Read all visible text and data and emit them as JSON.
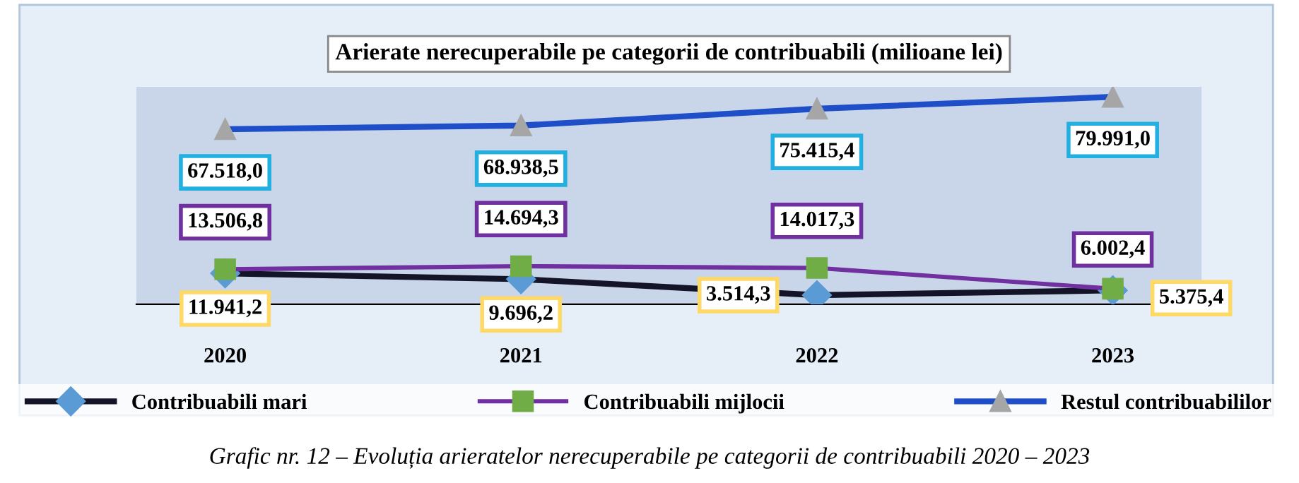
{
  "chart_data": {
    "type": "line",
    "title": "Arierate nerecuperabile pe categorii de contribuabili (milioane lei)",
    "categories": [
      "2020",
      "2021",
      "2022",
      "2023"
    ],
    "series": [
      {
        "name": "Contribuabili mari",
        "color": "#141428",
        "marker": "diamond",
        "values": [
          11941.2,
          9696.2,
          3514.3,
          5375.4
        ],
        "value_labels": [
          "11.941,2",
          "9.696,2",
          "3.514,3",
          "5.375,4"
        ]
      },
      {
        "name": "Contribuabili mijlocii",
        "color": "#7030a0",
        "marker": "square",
        "values": [
          13506.8,
          14694.3,
          14017.3,
          6002.4
        ],
        "value_labels": [
          "13.506,8",
          "14.694,3",
          "14.017,3",
          "6.002,4"
        ]
      },
      {
        "name": "Restul contribuabililor",
        "color": "#1f4fc8",
        "marker": "triangle",
        "values": [
          67518.0,
          68938.5,
          75415.4,
          79991.0
        ],
        "value_labels": [
          "67.518,0",
          "68.938,5",
          "75.415,4",
          "79.991,0"
        ]
      }
    ],
    "legend": "bottom",
    "grid": false,
    "annotations": [
      "Grafic nr. 12 – Evoluția arieratelor nerecuperabile pe categorii de contribuabili 2020 – 2023"
    ]
  }
}
